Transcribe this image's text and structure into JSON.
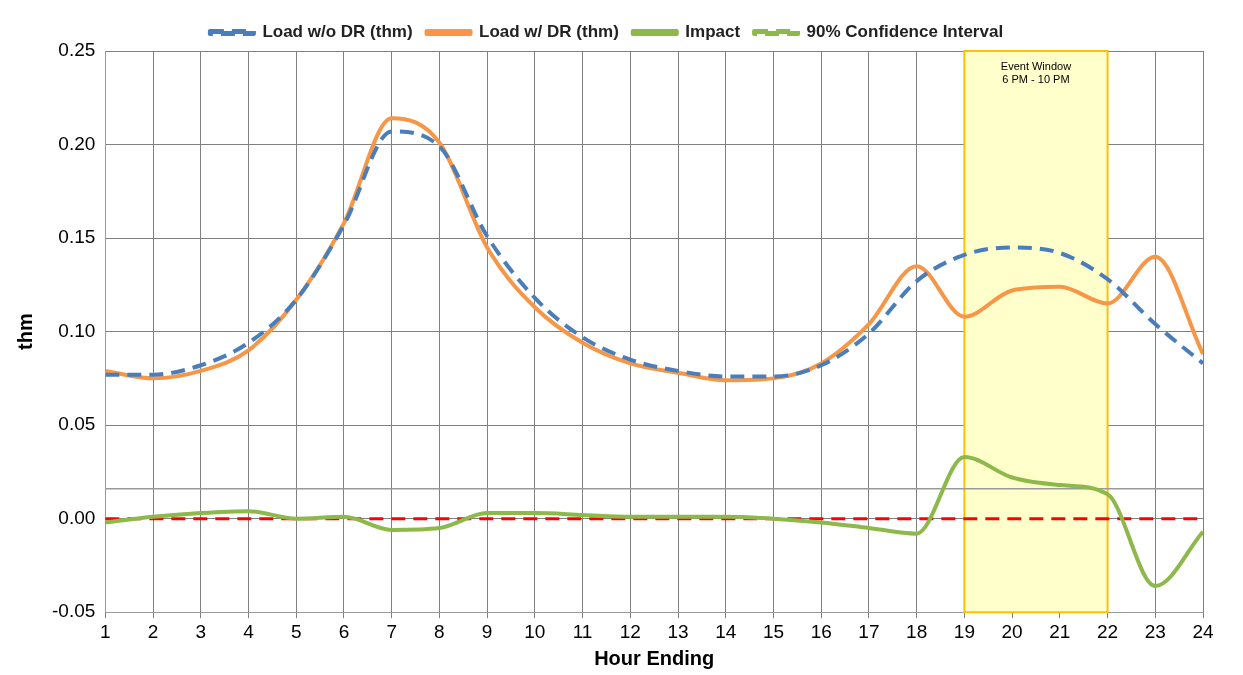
{
  "chart_data": {
    "type": "line",
    "xlabel": "Hour Ending",
    "ylabel": "thm",
    "x": [
      1,
      2,
      3,
      4,
      5,
      6,
      7,
      8,
      9,
      10,
      11,
      12,
      13,
      14,
      15,
      16,
      17,
      18,
      19,
      20,
      21,
      22,
      23,
      24
    ],
    "xlim": [
      1,
      24
    ],
    "xticks": [
      1,
      2,
      3,
      4,
      5,
      6,
      7,
      8,
      9,
      10,
      11,
      12,
      13,
      14,
      15,
      16,
      17,
      18,
      19,
      20,
      21,
      22,
      23,
      24
    ],
    "ylim": [
      -0.05,
      0.25
    ],
    "yticks": [
      -0.05,
      {
        "value": 0,
        "label": "0.00"
      },
      0.05,
      {
        "value": 0.1,
        "label": "0.10"
      },
      0.15,
      {
        "value": 0.2,
        "label": "0.20"
      },
      0.25
    ],
    "grid": true,
    "legend": "top",
    "marker": "none",
    "series": [
      {
        "name": "Load w/o DR (thm)",
        "color": "#4a7ebb",
        "line_style": "dashed",
        "values": [
          0.077,
          0.077,
          0.082,
          0.094,
          0.117,
          0.157,
          0.207,
          0.199,
          0.151,
          0.118,
          0.097,
          0.085,
          0.079,
          0.076,
          0.076,
          0.082,
          0.099,
          0.127,
          0.141,
          0.145,
          0.142,
          0.128,
          0.104,
          0.083
        ]
      },
      {
        "name": "Load w/ DR (thm)",
        "color": "#f79646",
        "line_style": "solid",
        "values": [
          0.079,
          0.075,
          0.079,
          0.09,
          0.117,
          0.158,
          0.214,
          0.201,
          0.145,
          0.113,
          0.094,
          0.083,
          0.078,
          0.074,
          0.075,
          0.083,
          0.104,
          0.135,
          0.108,
          0.122,
          0.124,
          0.115,
          0.14,
          0.088
        ]
      },
      {
        "name": "Impact",
        "color": "#8db84a",
        "line_style": "solid",
        "values": [
          -0.002,
          0.001,
          0.003,
          0.004,
          0.0,
          0.001,
          -0.006,
          -0.005,
          0.003,
          0.003,
          0.002,
          0.001,
          0.001,
          0.001,
          0.0,
          -0.002,
          -0.005,
          -0.008,
          0.033,
          0.022,
          0.018,
          0.013,
          -0.036,
          -0.007
        ]
      },
      {
        "name": "90% Confidence Interval",
        "color": "#8db84a",
        "line_style": "dashed",
        "values": [
          null,
          null,
          null,
          null,
          null,
          null,
          null,
          null,
          null,
          null,
          null,
          null,
          null,
          null,
          null,
          null,
          null,
          null,
          null,
          null,
          null,
          null,
          null,
          null
        ]
      }
    ],
    "ref_lines": [
      {
        "axis": "y",
        "value": 0,
        "color": "#ff0000",
        "line_style": "dashed"
      },
      {
        "axis": "y",
        "value": 0.016,
        "color": "#999999",
        "line_style": "solid"
      }
    ],
    "bands": [
      {
        "axis": "x",
        "from": 19,
        "to": 22,
        "label": "Event Window\n6 PM - 10 PM",
        "color": "#ffffcc"
      }
    ]
  }
}
